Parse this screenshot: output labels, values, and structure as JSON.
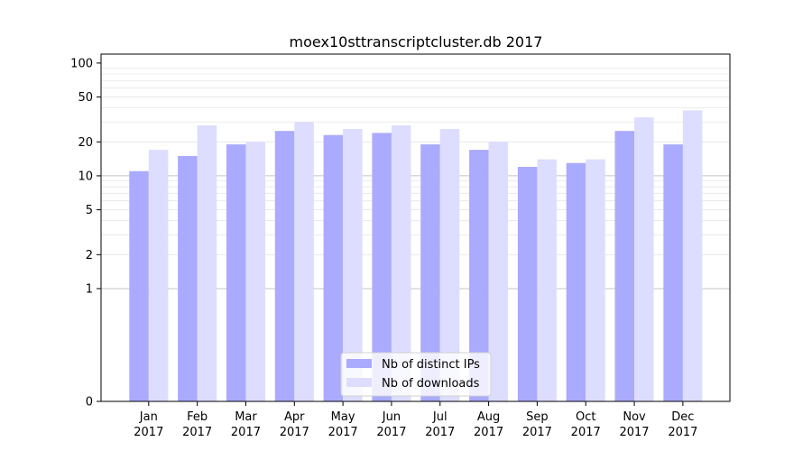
{
  "chart_data": {
    "type": "bar",
    "title": "moex10sttranscriptcluster.db 2017",
    "xlabel": "",
    "ylabel": "",
    "y_scale": "symlog",
    "ylim": [
      0,
      120
    ],
    "y_ticks": [
      0,
      1,
      2,
      5,
      10,
      20,
      50,
      100
    ],
    "grid": "horizontal",
    "legend_position": "bottom-center",
    "categories": [
      [
        "Jan",
        "2017"
      ],
      [
        "Feb",
        "2017"
      ],
      [
        "Mar",
        "2017"
      ],
      [
        "Apr",
        "2017"
      ],
      [
        "May",
        "2017"
      ],
      [
        "Jun",
        "2017"
      ],
      [
        "Jul",
        "2017"
      ],
      [
        "Aug",
        "2017"
      ],
      [
        "Sep",
        "2017"
      ],
      [
        "Oct",
        "2017"
      ],
      [
        "Nov",
        "2017"
      ],
      [
        "Dec",
        "2017"
      ]
    ],
    "series": [
      {
        "name": "Nb of distinct IPs",
        "color": "#aaaaff",
        "values": [
          11,
          15,
          19,
          25,
          23,
          24,
          19,
          17,
          12,
          13,
          25,
          19
        ]
      },
      {
        "name": "Nb of downloads",
        "color": "#ddddff",
        "values": [
          17,
          28,
          20,
          30,
          26,
          28,
          26,
          20,
          14,
          14,
          33,
          38
        ]
      }
    ]
  }
}
